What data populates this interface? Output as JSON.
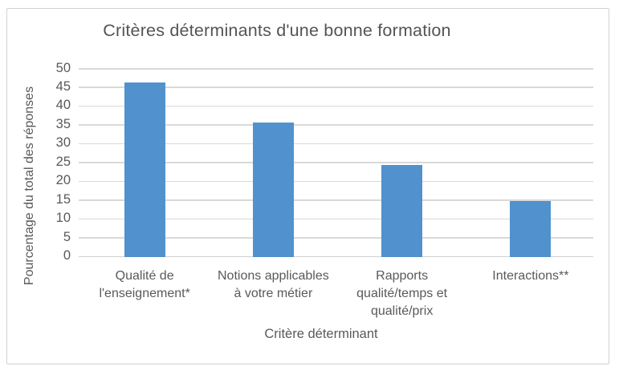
{
  "chart_data": {
    "type": "bar",
    "title": "Critères déterminants d'une bonne formation",
    "xlabel": "Critère déterminant",
    "ylabel": "Pourcentage du total des réponses",
    "categories": [
      "Qualité de l'enseignement*",
      "Notions applicables à votre métier",
      "Rapports qualité/temps et qualité/prix",
      "Interactions**"
    ],
    "category_lines": [
      [
        "Qualité de",
        "l'enseignement*"
      ],
      [
        "Notions applicables",
        "à votre métier"
      ],
      [
        "Rapports",
        "qualité/temps et",
        "qualité/prix"
      ],
      [
        "Interactions**"
      ]
    ],
    "values": [
      46.5,
      35.8,
      24.5,
      15
    ],
    "yticks": [
      0,
      5,
      10,
      15,
      20,
      25,
      30,
      35,
      40,
      45,
      50
    ],
    "ylim": [
      0,
      50
    ],
    "grid": true,
    "legend": false,
    "bar_color": "#5191ce",
    "text_color": "#595959",
    "gridline_color": "#d9d9d9",
    "frame_border_color": "#d2d2d2"
  }
}
